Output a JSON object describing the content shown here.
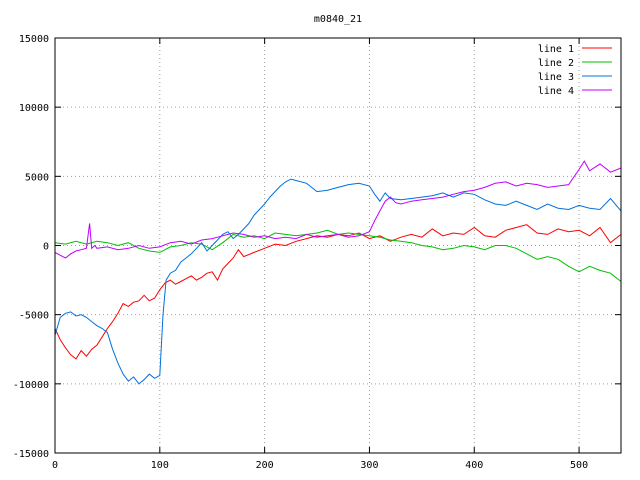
{
  "chart_data": {
    "type": "line",
    "title": "m0840_21",
    "xlabel": "",
    "ylabel": "",
    "xlim": [
      0,
      540
    ],
    "ylim": [
      -15000,
      15000
    ],
    "x_ticks": [
      0,
      100,
      200,
      300,
      400,
      500
    ],
    "y_ticks": [
      -15000,
      -10000,
      -5000,
      0,
      5000,
      10000,
      15000
    ],
    "grid": true,
    "legend_position": "top-right",
    "series": [
      {
        "name": "line 1",
        "color": "#ff0000",
        "x": [
          0,
          5,
          10,
          15,
          20,
          25,
          30,
          35,
          40,
          45,
          50,
          55,
          60,
          65,
          70,
          75,
          80,
          85,
          90,
          95,
          100,
          105,
          110,
          115,
          120,
          125,
          130,
          135,
          140,
          145,
          150,
          155,
          160,
          165,
          170,
          175,
          180,
          190,
          200,
          210,
          220,
          230,
          240,
          250,
          260,
          270,
          280,
          290,
          300,
          310,
          320,
          330,
          340,
          350,
          360,
          370,
          380,
          390,
          400,
          410,
          420,
          430,
          440,
          450,
          460,
          470,
          480,
          490,
          500,
          510,
          520,
          530,
          540
        ],
        "values": [
          -6000,
          -6800,
          -7400,
          -7900,
          -8200,
          -7600,
          -8000,
          -7500,
          -7200,
          -6600,
          -6000,
          -5500,
          -4900,
          -4200,
          -4400,
          -4100,
          -4000,
          -3600,
          -4000,
          -3800,
          -3200,
          -2700,
          -2500,
          -2800,
          -2600,
          -2400,
          -2200,
          -2500,
          -2300,
          -2000,
          -1900,
          -2500,
          -1700,
          -1300,
          -900,
          -300,
          -800,
          -500,
          -200,
          100,
          0,
          300,
          500,
          700,
          600,
          800,
          700,
          900,
          500,
          700,
          300,
          600,
          800,
          600,
          1200,
          700,
          900,
          800,
          1300,
          700,
          600,
          1100,
          1300,
          1500,
          900,
          800,
          1200,
          1000,
          1100,
          700,
          1300,
          200,
          800
        ]
      },
      {
        "name": "line 2",
        "color": "#00c000",
        "x": [
          0,
          10,
          20,
          30,
          40,
          50,
          60,
          70,
          80,
          90,
          100,
          110,
          120,
          130,
          140,
          150,
          160,
          170,
          180,
          190,
          200,
          210,
          220,
          230,
          240,
          250,
          260,
          270,
          280,
          290,
          300,
          310,
          320,
          330,
          340,
          350,
          360,
          370,
          380,
          390,
          400,
          410,
          420,
          430,
          440,
          450,
          460,
          470,
          480,
          490,
          500,
          510,
          520,
          530,
          540
        ],
        "values": [
          200,
          100,
          300,
          100,
          300,
          200,
          0,
          200,
          -200,
          -400,
          -500,
          -100,
          0,
          200,
          100,
          -300,
          200,
          800,
          600,
          700,
          500,
          900,
          800,
          700,
          800,
          900,
          1100,
          800,
          900,
          800,
          700,
          600,
          400,
          300,
          200,
          0,
          -100,
          -300,
          -200,
          0,
          -100,
          -300,
          0,
          0,
          -200,
          -600,
          -1000,
          -800,
          -1000,
          -1500,
          -1900,
          -1500,
          -1800,
          -2000,
          -2600
        ]
      },
      {
        "name": "line 3",
        "color": "#0070e0",
        "x": [
          0,
          5,
          10,
          15,
          20,
          25,
          30,
          35,
          40,
          45,
          50,
          55,
          60,
          65,
          70,
          75,
          80,
          85,
          90,
          95,
          100,
          103,
          106,
          110,
          115,
          120,
          125,
          130,
          135,
          140,
          145,
          150,
          155,
          160,
          165,
          170,
          175,
          180,
          185,
          190,
          195,
          200,
          205,
          210,
          215,
          220,
          225,
          230,
          240,
          250,
          260,
          270,
          280,
          290,
          300,
          305,
          310,
          315,
          320,
          330,
          340,
          350,
          360,
          370,
          380,
          390,
          400,
          410,
          420,
          430,
          440,
          450,
          460,
          470,
          480,
          490,
          500,
          510,
          520,
          530,
          540
        ],
        "values": [
          -6500,
          -5200,
          -4900,
          -4800,
          -5100,
          -5000,
          -5200,
          -5500,
          -5800,
          -6000,
          -6300,
          -7500,
          -8500,
          -9300,
          -9800,
          -9500,
          -10000,
          -9700,
          -9300,
          -9600,
          -9400,
          -5000,
          -2500,
          -2000,
          -1800,
          -1200,
          -900,
          -600,
          -200,
          200,
          -400,
          0,
          400,
          800,
          1000,
          500,
          800,
          1200,
          1600,
          2200,
          2600,
          3000,
          3500,
          3900,
          4300,
          4600,
          4800,
          4700,
          4500,
          3900,
          4000,
          4200,
          4400,
          4500,
          4300,
          3700,
          3200,
          3800,
          3400,
          3300,
          3400,
          3500,
          3600,
          3800,
          3500,
          3800,
          3700,
          3300,
          3000,
          2900,
          3200,
          2900,
          2600,
          3000,
          2700,
          2600,
          2900,
          2700,
          2600,
          3400,
          2500
        ]
      },
      {
        "name": "line 4",
        "color": "#c000ff",
        "x": [
          0,
          5,
          10,
          15,
          20,
          25,
          30,
          33,
          35,
          38,
          40,
          50,
          60,
          70,
          80,
          90,
          100,
          110,
          120,
          130,
          140,
          150,
          160,
          170,
          180,
          190,
          200,
          210,
          220,
          230,
          240,
          250,
          260,
          270,
          280,
          290,
          300,
          305,
          310,
          315,
          320,
          325,
          330,
          340,
          350,
          360,
          370,
          380,
          390,
          400,
          410,
          420,
          430,
          440,
          450,
          460,
          470,
          480,
          490,
          500,
          505,
          510,
          520,
          530,
          540
        ],
        "values": [
          -500,
          -700,
          -900,
          -600,
          -400,
          -300,
          -200,
          1600,
          -200,
          0,
          -200,
          -100,
          -300,
          -200,
          0,
          -200,
          -100,
          200,
          300,
          100,
          400,
          500,
          700,
          900,
          800,
          600,
          700,
          500,
          600,
          500,
          800,
          600,
          700,
          800,
          600,
          700,
          1000,
          1800,
          2500,
          3200,
          3500,
          3100,
          3000,
          3200,
          3300,
          3400,
          3500,
          3700,
          3900,
          4000,
          4200,
          4500,
          4600,
          4300,
          4500,
          4400,
          4200,
          4300,
          4400,
          5500,
          6100,
          5400,
          5900,
          5300,
          5600
        ]
      }
    ]
  }
}
